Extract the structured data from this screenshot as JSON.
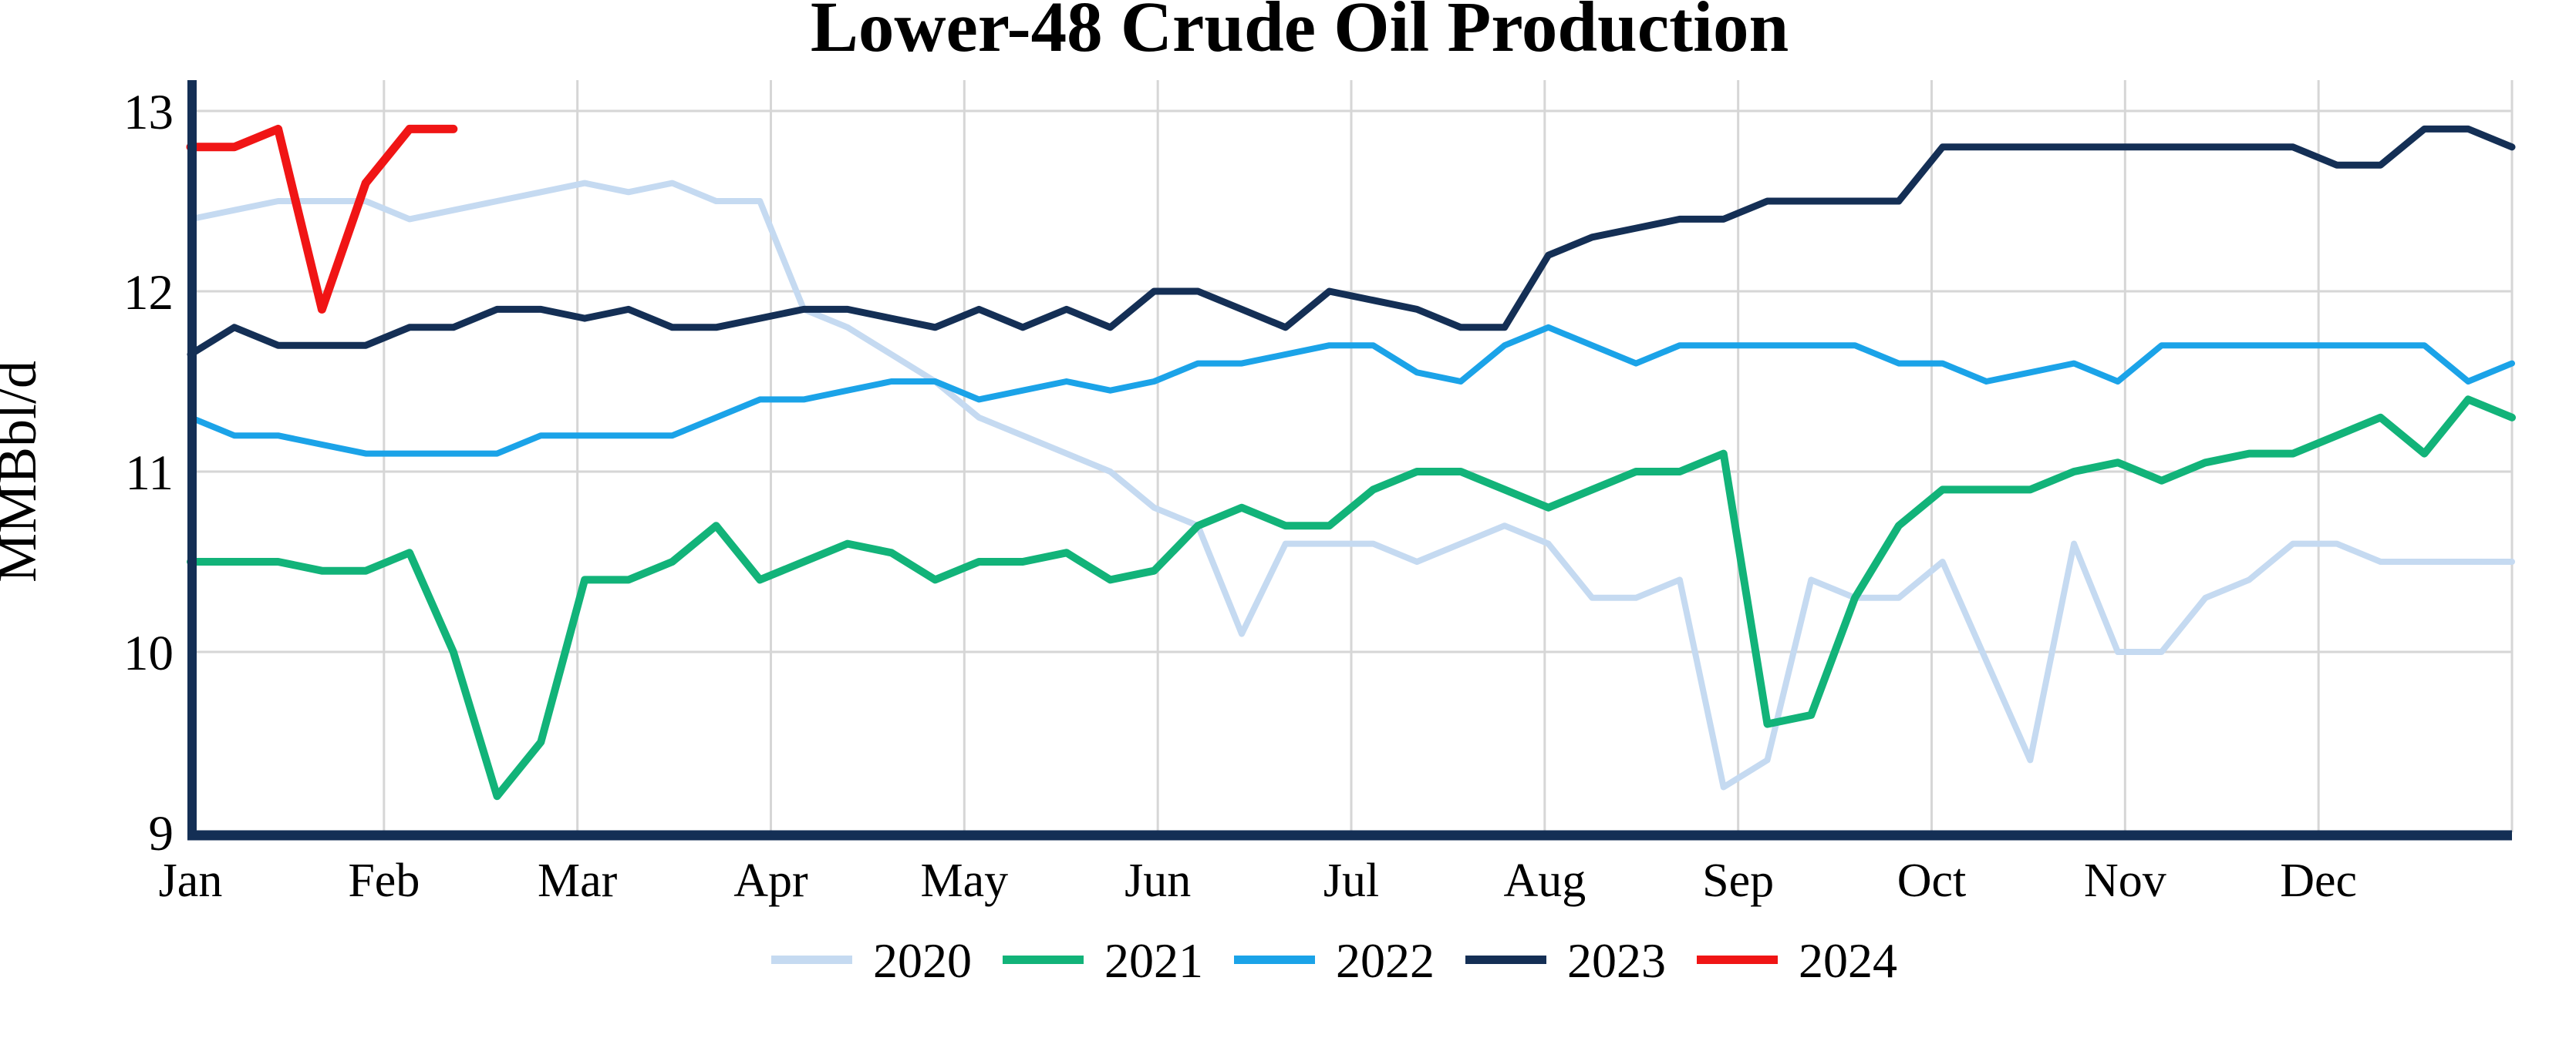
{
  "chart_data": {
    "type": "line",
    "title": "Lower-48 Crude Oil Production",
    "ylabel": "MMBbl/d",
    "ylim": [
      9,
      13
    ],
    "yticks": [
      9,
      10,
      11,
      12,
      13
    ],
    "ytick_labels": [
      "9",
      "10",
      "11",
      "12",
      "13"
    ],
    "x_tick_labels": [
      "Jan",
      "Feb",
      "Mar",
      "Apr",
      "May",
      "Jun",
      "Jul",
      "Aug",
      "Sep",
      "Oct",
      "Nov",
      "Dec"
    ],
    "x_unit": "weekly",
    "weeks": 54,
    "grid": true,
    "legend_position": "bottom",
    "axis_color": "#142f55",
    "grid_color": "#d6d6d6",
    "background_color": "#ffffff",
    "series": [
      {
        "name": "2020",
        "color": "#c5daf1",
        "stroke_width": 8,
        "values": [
          12.4,
          12.45,
          12.5,
          12.5,
          12.5,
          12.4,
          12.45,
          12.5,
          12.55,
          12.6,
          12.55,
          12.6,
          12.5,
          12.5,
          11.9,
          11.8,
          11.65,
          11.5,
          11.3,
          11.2,
          11.1,
          11.0,
          10.8,
          10.7,
          10.1,
          10.6,
          10.6,
          10.6,
          10.5,
          10.6,
          10.7,
          10.6,
          10.3,
          10.3,
          10.4,
          9.25,
          9.4,
          10.4,
          10.3,
          10.3,
          10.5,
          9.95,
          9.4,
          10.6,
          10.0,
          10.0,
          10.3,
          10.4,
          10.6,
          10.6,
          10.5,
          10.5,
          10.5,
          10.5
        ]
      },
      {
        "name": "2021",
        "color": "#12b379",
        "stroke_width": 10,
        "values": [
          10.5,
          10.5,
          10.5,
          10.45,
          10.45,
          10.55,
          10.0,
          9.2,
          9.5,
          10.4,
          10.4,
          10.5,
          10.7,
          10.4,
          10.5,
          10.6,
          10.55,
          10.4,
          10.5,
          10.5,
          10.55,
          10.4,
          10.45,
          10.7,
          10.8,
          10.7,
          10.7,
          10.9,
          11.0,
          11.0,
          10.9,
          10.8,
          10.9,
          11.0,
          11.0,
          11.1,
          9.6,
          9.65,
          10.3,
          10.7,
          10.9,
          10.9,
          10.9,
          11.0,
          11.05,
          10.95,
          11.05,
          11.1,
          11.1,
          11.2,
          11.3,
          11.1,
          11.4,
          11.3
        ]
      },
      {
        "name": "2022",
        "color": "#1ba3e8",
        "stroke_width": 8,
        "values": [
          11.3,
          11.2,
          11.2,
          11.15,
          11.1,
          11.1,
          11.1,
          11.1,
          11.2,
          11.2,
          11.2,
          11.2,
          11.3,
          11.4,
          11.4,
          11.45,
          11.5,
          11.5,
          11.4,
          11.45,
          11.5,
          11.45,
          11.5,
          11.6,
          11.6,
          11.65,
          11.7,
          11.7,
          11.55,
          11.5,
          11.7,
          11.8,
          11.7,
          11.6,
          11.7,
          11.7,
          11.7,
          11.7,
          11.7,
          11.6,
          11.6,
          11.5,
          11.55,
          11.6,
          11.5,
          11.7,
          11.7,
          11.7,
          11.7,
          11.7,
          11.7,
          11.7,
          11.5,
          11.6
        ]
      },
      {
        "name": "2023",
        "color": "#142f55",
        "stroke_width": 9,
        "values": [
          11.65,
          11.8,
          11.7,
          11.7,
          11.7,
          11.8,
          11.8,
          11.9,
          11.9,
          11.85,
          11.9,
          11.8,
          11.8,
          11.85,
          11.9,
          11.9,
          11.85,
          11.8,
          11.9,
          11.8,
          11.9,
          11.8,
          12.0,
          12.0,
          11.9,
          11.8,
          12.0,
          11.95,
          11.9,
          11.8,
          11.8,
          12.2,
          12.3,
          12.35,
          12.4,
          12.4,
          12.5,
          12.5,
          12.5,
          12.5,
          12.8,
          12.8,
          12.8,
          12.8,
          12.8,
          12.8,
          12.8,
          12.8,
          12.8,
          12.7,
          12.7,
          12.9,
          12.9,
          12.8
        ]
      },
      {
        "name": "2024",
        "color": "#f01515",
        "stroke_width": 11,
        "values": [
          12.8,
          12.8,
          12.9,
          11.9,
          12.6,
          12.9,
          12.9
        ]
      }
    ]
  }
}
